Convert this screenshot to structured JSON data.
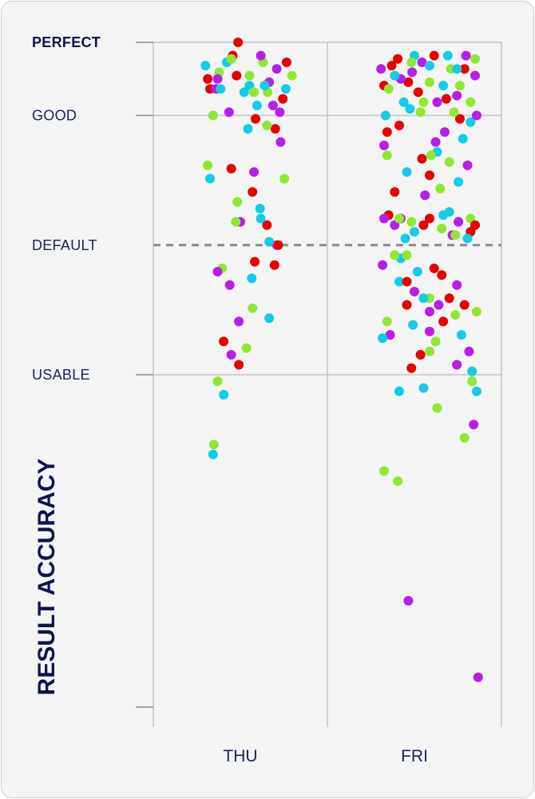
{
  "chart_data": {
    "type": "scatter",
    "ylabel": "RESULT ACCURACY",
    "categories": [
      "THU",
      "FRI"
    ],
    "y_levels": [
      {
        "label": "PERFECT",
        "value": 1.0,
        "emphasis": true
      },
      {
        "label": "GOOD",
        "value": 0.78,
        "emphasis": false
      },
      {
        "label": "DEFAULT",
        "value": 0.39,
        "emphasis": false
      },
      {
        "label": "USABLE",
        "value": 0.0,
        "emphasis": false
      }
    ],
    "reference_line": {
      "label": "DEFAULT",
      "value": 0.39,
      "style": "dashed"
    },
    "ylim": [
      -0.89,
      1.0
    ],
    "grid": true,
    "point_colors": [
      "#e80000",
      "#b81ee8",
      "#11cce8",
      "#8ee832"
    ],
    "points": {
      "THU": [
        [
          -0.03,
          1.0,
          0
        ],
        [
          0.38,
          0.88,
          1
        ],
        [
          0.12,
          0.87,
          2
        ],
        [
          0.3,
          0.94,
          3
        ],
        [
          0.56,
          0.83,
          0
        ],
        [
          0.48,
          0.92,
          1
        ],
        [
          0.22,
          0.81,
          2
        ],
        [
          0.68,
          0.9,
          3
        ],
        [
          -0.4,
          0.86,
          0
        ],
        [
          -0.15,
          0.79,
          1
        ],
        [
          0.05,
          0.85,
          2
        ],
        [
          -0.28,
          0.91,
          3
        ],
        [
          0.61,
          0.94,
          0
        ],
        [
          0.52,
          0.79,
          1
        ],
        [
          -0.46,
          0.93,
          2
        ],
        [
          0.36,
          0.85,
          3
        ],
        [
          -0.1,
          0.96,
          0
        ],
        [
          0.27,
          0.96,
          1
        ],
        [
          0.6,
          0.86,
          2
        ],
        [
          -0.36,
          0.78,
          3
        ],
        [
          0.2,
          0.77,
          0
        ],
        [
          0.43,
          0.81,
          1
        ],
        [
          -0.18,
          0.94,
          2
        ],
        [
          -0.12,
          0.95,
          3
        ],
        [
          -0.05,
          0.9,
          0
        ],
        [
          -0.3,
          0.89,
          1
        ],
        [
          0.32,
          0.87,
          2
        ],
        [
          0.12,
          0.9,
          3
        ],
        [
          -0.43,
          0.89,
          0
        ],
        [
          -0.32,
          0.86,
          1
        ],
        [
          -0.26,
          0.86,
          2
        ],
        [
          0.18,
          0.85,
          3
        ],
        [
          0.46,
          0.74,
          0
        ],
        [
          0.53,
          0.7,
          1
        ],
        [
          0.1,
          0.74,
          2
        ],
        [
          0.35,
          0.75,
          3
        ],
        [
          -0.12,
          0.62,
          0
        ],
        [
          0.18,
          0.61,
          1
        ],
        [
          -0.4,
          0.59,
          2
        ],
        [
          -0.43,
          0.63,
          3
        ],
        [
          0.35,
          0.45,
          0
        ],
        [
          0.0,
          0.46,
          1
        ],
        [
          0.26,
          0.5,
          2
        ],
        [
          0.58,
          0.59,
          3
        ],
        [
          0.16,
          0.55,
          0
        ],
        [
          0.48,
          0.39,
          1
        ],
        [
          0.27,
          0.47,
          2
        ],
        [
          -0.24,
          0.32,
          3
        ],
        [
          0.45,
          0.33,
          0
        ],
        [
          -0.14,
          0.27,
          1
        ],
        [
          0.38,
          0.4,
          2
        ],
        [
          -0.06,
          0.46,
          3
        ],
        [
          0.19,
          0.34,
          0
        ],
        [
          -0.3,
          0.31,
          1
        ],
        [
          0.15,
          0.29,
          2
        ],
        [
          -0.04,
          0.52,
          3
        ],
        [
          -0.22,
          0.1,
          0
        ],
        [
          -0.12,
          0.06,
          1
        ],
        [
          -0.22,
          -0.06,
          2
        ],
        [
          0.16,
          0.2,
          3
        ],
        [
          0.5,
          0.39,
          0
        ],
        [
          -0.02,
          0.16,
          1
        ],
        [
          0.38,
          0.17,
          2
        ],
        [
          0.08,
          0.08,
          3
        ],
        [
          -0.02,
          0.03,
          0
        ],
        [
          -0.3,
          -0.02,
          3
        ],
        [
          -0.35,
          -0.21,
          3
        ],
        [
          -0.36,
          -0.24,
          2
        ]
      ],
      "FRI": [
        [
          -0.3,
          0.93,
          0
        ],
        [
          0.1,
          0.94,
          1
        ],
        [
          0.44,
          0.96,
          2
        ],
        [
          0.8,
          0.95,
          3
        ],
        [
          -0.4,
          0.87,
          0
        ],
        [
          0.56,
          0.84,
          1
        ],
        [
          -0.14,
          0.82,
          2
        ],
        [
          0.2,
          0.88,
          3
        ],
        [
          0.66,
          0.92,
          0
        ],
        [
          -0.03,
          0.91,
          1
        ],
        [
          0.38,
          0.87,
          2
        ],
        [
          0.74,
          0.82,
          3
        ],
        [
          -0.22,
          0.95,
          0
        ],
        [
          0.3,
          0.82,
          1
        ],
        [
          -0.38,
          0.78,
          2
        ],
        [
          0.6,
          0.87,
          3
        ],
        [
          0.05,
          0.85,
          0
        ],
        [
          -0.44,
          0.92,
          1
        ],
        [
          0.0,
          0.96,
          2
        ],
        [
          0.48,
          0.92,
          3
        ],
        [
          -0.08,
          0.88,
          0
        ],
        [
          0.68,
          0.96,
          1
        ],
        [
          0.2,
          0.93,
          2
        ],
        [
          -0.34,
          0.86,
          3
        ],
        [
          0.42,
          0.83,
          0
        ],
        [
          -0.18,
          0.89,
          1
        ],
        [
          0.56,
          0.92,
          2
        ],
        [
          -0.04,
          0.94,
          3
        ],
        [
          0.26,
          0.96,
          0
        ],
        [
          0.8,
          0.9,
          1
        ],
        [
          -0.26,
          0.9,
          2
        ],
        [
          0.12,
          0.82,
          3
        ],
        [
          -0.36,
          0.73,
          0
        ],
        [
          0.4,
          0.73,
          1
        ],
        [
          0.74,
          0.76,
          2
        ],
        [
          0.08,
          0.79,
          3
        ],
        [
          0.6,
          0.77,
          0
        ],
        [
          -0.4,
          0.69,
          1
        ],
        [
          0.3,
          0.67,
          2
        ],
        [
          -0.36,
          0.66,
          3
        ],
        [
          -0.2,
          0.75,
          0
        ],
        [
          0.82,
          0.78,
          1
        ],
        [
          -0.06,
          0.8,
          2
        ],
        [
          0.52,
          0.79,
          3
        ],
        [
          0.1,
          0.65,
          0
        ],
        [
          0.28,
          0.7,
          1
        ],
        [
          0.64,
          0.71,
          2
        ],
        [
          0.46,
          0.64,
          3
        ],
        [
          0.2,
          0.6,
          0
        ],
        [
          0.7,
          0.63,
          1
        ],
        [
          -0.1,
          0.61,
          2
        ],
        [
          0.22,
          0.66,
          3
        ],
        [
          -0.26,
          0.55,
          0
        ],
        [
          0.14,
          0.54,
          1
        ],
        [
          0.58,
          0.58,
          2
        ],
        [
          0.34,
          0.56,
          3
        ],
        [
          -0.34,
          0.48,
          0
        ],
        [
          0.58,
          0.46,
          1
        ],
        [
          0.38,
          0.48,
          2
        ],
        [
          -0.04,
          0.46,
          3
        ],
        [
          0.12,
          0.45,
          0
        ],
        [
          -0.18,
          0.47,
          1
        ],
        [
          0.46,
          0.49,
          2
        ],
        [
          0.74,
          0.47,
          3
        ],
        [
          0.74,
          0.43,
          0
        ],
        [
          -0.26,
          0.45,
          1
        ],
        [
          0.0,
          0.43,
          2
        ],
        [
          -0.2,
          0.47,
          3
        ],
        [
          0.2,
          0.47,
          0
        ],
        [
          0.5,
          0.42,
          1
        ],
        [
          -0.12,
          0.41,
          2
        ],
        [
          0.36,
          0.44,
          3
        ],
        [
          0.8,
          0.45,
          0
        ],
        [
          -0.4,
          0.47,
          1
        ],
        [
          0.7,
          0.41,
          2
        ],
        [
          0.54,
          0.42,
          3
        ],
        [
          0.26,
          0.32,
          0
        ],
        [
          -0.42,
          0.33,
          1
        ],
        [
          -0.18,
          0.35,
          2
        ],
        [
          -0.1,
          0.36,
          3
        ],
        [
          0.36,
          0.3,
          0
        ],
        [
          0.0,
          0.25,
          1
        ],
        [
          -0.2,
          0.28,
          2
        ],
        [
          0.2,
          0.23,
          3
        ],
        [
          -0.1,
          0.21,
          0
        ],
        [
          0.56,
          0.27,
          1
        ],
        [
          0.12,
          0.23,
          2
        ],
        [
          -0.26,
          0.36,
          3
        ],
        [
          0.66,
          0.21,
          0
        ],
        [
          0.2,
          0.19,
          1
        ],
        [
          -0.02,
          0.15,
          2
        ],
        [
          0.54,
          0.18,
          3
        ],
        [
          0.46,
          0.23,
          0
        ],
        [
          -0.32,
          0.12,
          1
        ],
        [
          -0.42,
          0.11,
          2
        ],
        [
          -0.36,
          0.16,
          3
        ],
        [
          0.08,
          0.06,
          0
        ],
        [
          0.72,
          0.07,
          1
        ],
        [
          0.04,
          0.31,
          2
        ],
        [
          0.82,
          0.19,
          3
        ],
        [
          -0.1,
          0.28,
          0
        ],
        [
          0.32,
          0.21,
          1
        ],
        [
          0.62,
          0.12,
          2
        ],
        [
          0.28,
          0.1,
          3
        ],
        [
          -0.04,
          0.02,
          0
        ],
        [
          0.56,
          0.03,
          1
        ],
        [
          0.76,
          0.01,
          2
        ],
        [
          0.2,
          0.07,
          3
        ],
        [
          0.38,
          0.16,
          0
        ],
        [
          0.2,
          0.13,
          1
        ],
        [
          0.76,
          -0.02,
          3
        ],
        [
          0.12,
          -0.04,
          2
        ],
        [
          -0.2,
          -0.05,
          2
        ],
        [
          0.3,
          -0.1,
          3
        ],
        [
          0.78,
          -0.15,
          1
        ],
        [
          0.82,
          -0.05,
          2
        ],
        [
          0.66,
          -0.19,
          3
        ],
        [
          -0.4,
          -0.29,
          3
        ],
        [
          -0.22,
          -0.32,
          3
        ],
        [
          -0.08,
          -0.68,
          1
        ],
        [
          0.84,
          -0.91,
          1
        ]
      ]
    }
  }
}
